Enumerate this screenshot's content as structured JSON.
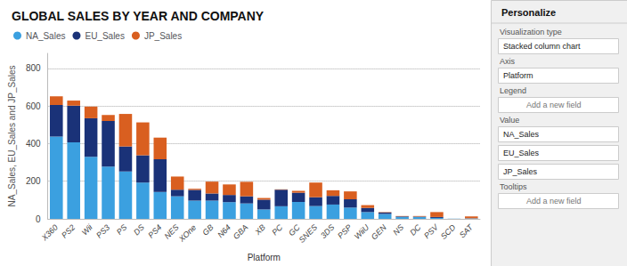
{
  "chart_data": {
    "type": "bar",
    "stacked": true,
    "title": "GLOBAL SALES BY YEAR AND COMPANY",
    "xlabel": "Platform",
    "ylabel": "NA_Sales, EU_Sales and JP_Sales",
    "categories": [
      "X360",
      "PS2",
      "Wii",
      "PS3",
      "PS",
      "DS",
      "PS4",
      "NES",
      "XOne",
      "GB",
      "N64",
      "GBA",
      "XB",
      "PC",
      "GC",
      "SNES",
      "3DS",
      "PSP",
      "WiiU",
      "GEN",
      "NS",
      "DC",
      "PSV",
      "SCD",
      "SAT"
    ],
    "series": [
      {
        "name": "NA_Sales",
        "color": "#3BA0E0",
        "values": [
          438,
          407,
          330,
          278,
          252,
          193,
          143,
          120,
          97,
          97,
          89,
          82,
          50,
          67,
          90,
          68,
          76,
          60,
          36,
          26,
          10,
          10,
          5,
          1,
          2
        ]
      },
      {
        "name": "EU_Sales",
        "color": "#1A3278",
        "values": [
          168,
          195,
          205,
          242,
          133,
          145,
          174,
          35,
          57,
          38,
          38,
          38,
          52,
          88,
          49,
          47,
          46,
          44,
          22,
          8,
          3,
          2,
          5,
          0,
          1
        ]
      },
      {
        "name": "JP_Sales",
        "color": "#D95F20",
        "values": [
          46,
          27,
          62,
          32,
          173,
          175,
          115,
          70,
          6,
          63,
          56,
          77,
          9,
          2,
          10,
          78,
          30,
          42,
          15,
          2,
          2,
          3,
          26,
          0,
          10
        ]
      }
    ],
    "ylim": [
      0,
      880
    ],
    "yticks": [
      0,
      200,
      400,
      600,
      800
    ],
    "grid": true,
    "legend": "top",
    "annotations": [
      "Personalize",
      "Visualization type",
      "Stacked column chart",
      "Axis",
      "Platform",
      "Legend",
      "Add a new field",
      "Value",
      "NA_Sales",
      "EU_Sales",
      "JP_Sales",
      "Tooltips",
      "Add a new field"
    ]
  }
}
